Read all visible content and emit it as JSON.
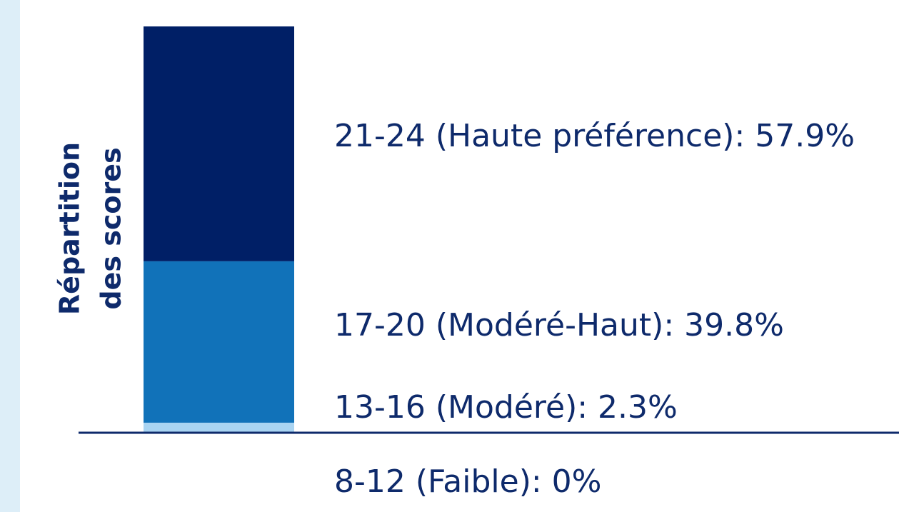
{
  "chart_data": {
    "type": "stacked_bar",
    "ylabel": [
      "Répartition",
      "des scores"
    ],
    "ylim": [
      0,
      100
    ],
    "series": [
      {
        "name": "8-12 (Faible): 0%",
        "color": "#cfe6f7",
        "values": [
          0
        ]
      },
      {
        "name": "13-16 (Modéré): 2.3%",
        "color": "#a9d4f2",
        "values": [
          2.3
        ]
      },
      {
        "name": "17-20 (Modéré-Haut): 39.8%",
        "color": "#1172b9",
        "values": [
          39.8
        ]
      },
      {
        "name": "21-24 (Haute préférence): 57.9%",
        "color": "#001f66",
        "values": [
          57.9
        ]
      }
    ]
  }
}
